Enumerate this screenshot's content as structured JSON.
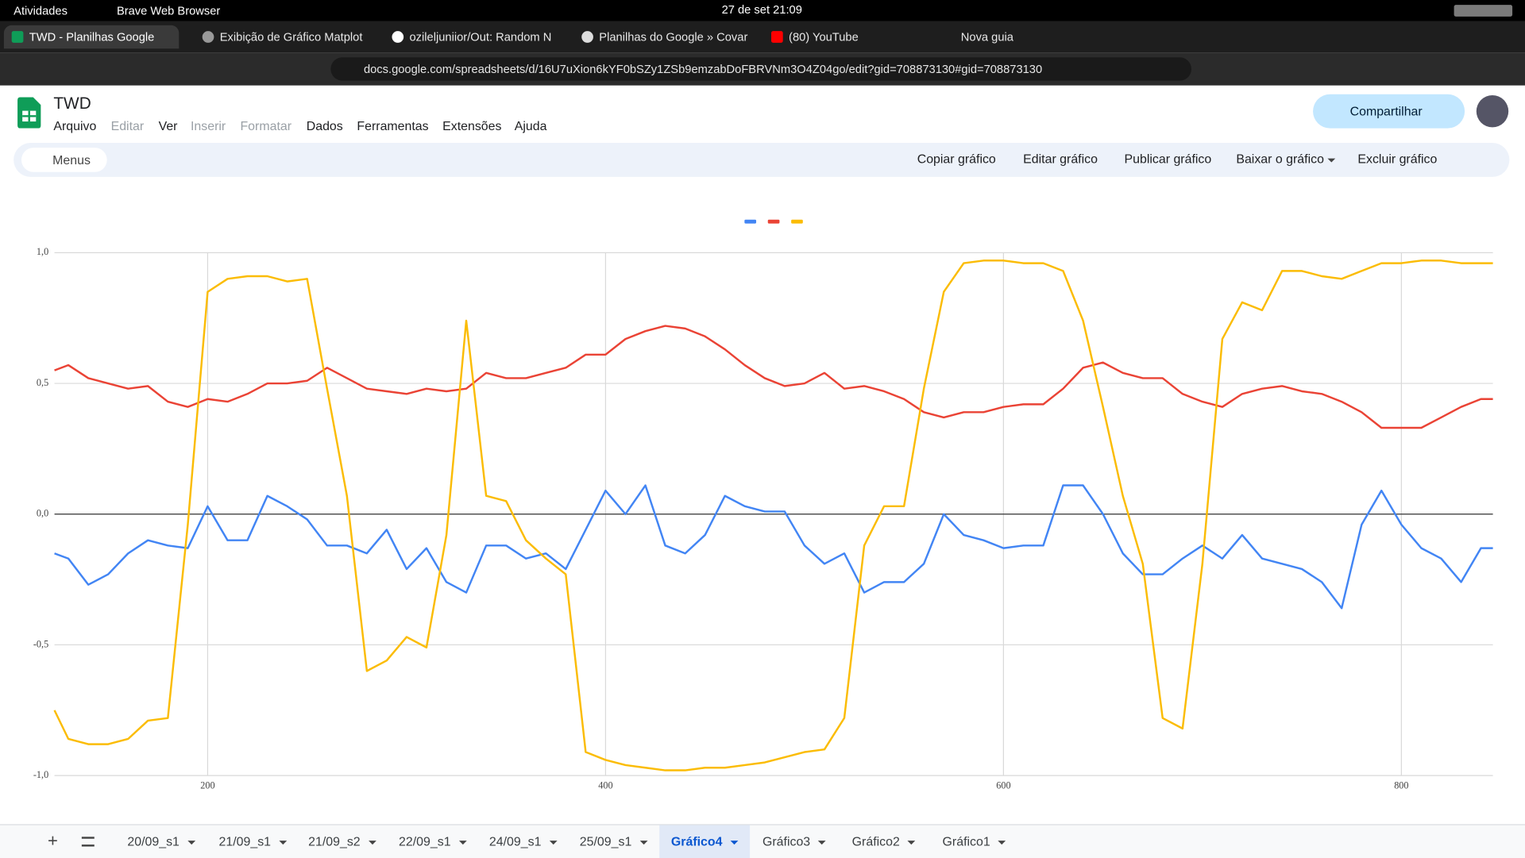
{
  "system": {
    "activities": "Atividades",
    "app": "Brave Web Browser",
    "clock": "27 de set  21:09"
  },
  "tabs": [
    "TWD - Planilhas Google",
    "Exibição de Gráfico Matplot",
    "ozileljuniior/Out: Random N",
    "Planilhas do Google » Covar",
    "(80) YouTube",
    "Nova guia"
  ],
  "url": "docs.google.com/spreadsheets/d/16U7uXion6kYF0bSZy1ZSb9emzabDoFBRVNm3O4Z04go/edit?gid=708873130#gid=708873130",
  "doc": {
    "title": "TWD",
    "menus": [
      "Arquivo",
      "Editar",
      "Ver",
      "Inserir",
      "Formatar",
      "Dados",
      "Ferramentas",
      "Extensões",
      "Ajuda"
    ],
    "share": "Compartilhar"
  },
  "toolbar": {
    "search": "Menus",
    "actions": [
      "Copiar gráfico",
      "Editar gráfico",
      "Publicar gráfico",
      "Baixar o gráfico",
      "Excluir gráfico"
    ]
  },
  "sheets": [
    "20/09_s1",
    "21/09_s1",
    "21/09_s2",
    "22/09_s1",
    "24/09_s1",
    "25/09_s1",
    "Gráfico4",
    "Gráfico3",
    "Gráfico2",
    "Gráfico1"
  ],
  "chart_data": {
    "type": "line",
    "x": [
      123,
      130,
      140,
      150,
      160,
      170,
      180,
      190,
      200,
      210,
      220,
      230,
      240,
      250,
      260,
      270,
      280,
      290,
      300,
      310,
      320,
      330,
      340,
      350,
      360,
      370,
      380,
      390,
      400,
      410,
      420,
      430,
      440,
      450,
      460,
      470,
      480,
      490,
      500,
      510,
      520,
      530,
      540,
      550,
      560,
      570,
      580,
      590,
      600,
      610,
      620,
      630,
      640,
      650,
      660,
      670,
      680,
      690,
      700,
      710,
      720,
      730,
      740,
      750,
      760,
      770,
      780,
      790,
      800,
      810,
      820,
      830,
      840,
      846
    ],
    "series": [
      {
        "color": "#4285f4",
        "values": [
          -0.15,
          -0.17,
          -0.27,
          -0.23,
          -0.15,
          -0.1,
          -0.12,
          -0.13,
          0.03,
          -0.1,
          -0.1,
          0.07,
          0.03,
          -0.02,
          -0.12,
          -0.12,
          -0.15,
          -0.06,
          -0.21,
          -0.13,
          -0.26,
          -0.3,
          -0.12,
          -0.12,
          -0.17,
          -0.15,
          -0.21,
          -0.06,
          0.09,
          0.0,
          0.11,
          -0.12,
          -0.15,
          -0.08,
          0.07,
          0.03,
          0.01,
          0.01,
          -0.12,
          -0.19,
          -0.15,
          -0.3,
          -0.26,
          -0.26,
          -0.19,
          0.0,
          -0.08,
          -0.1,
          -0.13,
          -0.12,
          -0.12,
          0.11,
          0.11,
          0.0,
          -0.15,
          -0.23,
          -0.23,
          -0.17,
          -0.12,
          -0.17,
          -0.08,
          -0.17,
          -0.19,
          -0.21,
          -0.26,
          -0.36,
          -0.04,
          0.09,
          -0.04,
          -0.13,
          -0.17,
          -0.26,
          -0.13,
          -0.13
        ]
      },
      {
        "color": "#ea4335",
        "values": [
          0.55,
          0.57,
          0.52,
          0.5,
          0.48,
          0.49,
          0.43,
          0.41,
          0.44,
          0.43,
          0.46,
          0.5,
          0.5,
          0.51,
          0.56,
          0.52,
          0.48,
          0.47,
          0.46,
          0.48,
          0.47,
          0.48,
          0.54,
          0.52,
          0.52,
          0.54,
          0.56,
          0.61,
          0.61,
          0.67,
          0.7,
          0.72,
          0.71,
          0.68,
          0.63,
          0.57,
          0.52,
          0.49,
          0.5,
          0.54,
          0.48,
          0.49,
          0.47,
          0.44,
          0.39,
          0.37,
          0.39,
          0.39,
          0.41,
          0.42,
          0.42,
          0.48,
          0.56,
          0.58,
          0.54,
          0.52,
          0.52,
          0.46,
          0.43,
          0.41,
          0.46,
          0.48,
          0.49,
          0.47,
          0.46,
          0.43,
          0.39,
          0.33,
          0.33,
          0.33,
          0.37,
          0.41,
          0.44,
          0.44
        ]
      },
      {
        "color": "#fbbc04",
        "values": [
          -0.75,
          -0.86,
          -0.88,
          -0.88,
          -0.86,
          -0.79,
          -0.78,
          -0.04,
          0.85,
          0.9,
          0.91,
          0.91,
          0.89,
          0.9,
          0.48,
          0.07,
          -0.6,
          -0.56,
          -0.47,
          -0.51,
          -0.08,
          0.74,
          0.07,
          0.05,
          -0.1,
          -0.17,
          -0.23,
          -0.91,
          -0.94,
          -0.96,
          -0.97,
          -0.98,
          -0.98,
          -0.97,
          -0.97,
          -0.96,
          -0.95,
          -0.93,
          -0.91,
          -0.9,
          -0.78,
          -0.12,
          0.03,
          0.03,
          0.48,
          0.85,
          0.96,
          0.97,
          0.97,
          0.96,
          0.96,
          0.93,
          0.74,
          0.41,
          0.07,
          -0.19,
          -0.78,
          -0.82,
          -0.19,
          0.67,
          0.81,
          0.78,
          0.93,
          0.93,
          0.91,
          0.9,
          0.93,
          0.96,
          0.96,
          0.97,
          0.97,
          0.96,
          0.96,
          0.96
        ]
      }
    ],
    "xlim": [
      123,
      846
    ],
    "xticks": [
      200,
      400,
      600,
      800
    ],
    "ylim": [
      -1,
      1
    ],
    "yticks": [
      {
        "value": 1,
        "label": "1,0"
      },
      {
        "value": 0.5,
        "label": "0,5"
      },
      {
        "value": 0,
        "label": "0,0"
      },
      {
        "value": -0.5,
        "label": "-0,5"
      },
      {
        "value": -1,
        "label": "-1,0"
      }
    ],
    "grid": true,
    "legend": "top"
  }
}
